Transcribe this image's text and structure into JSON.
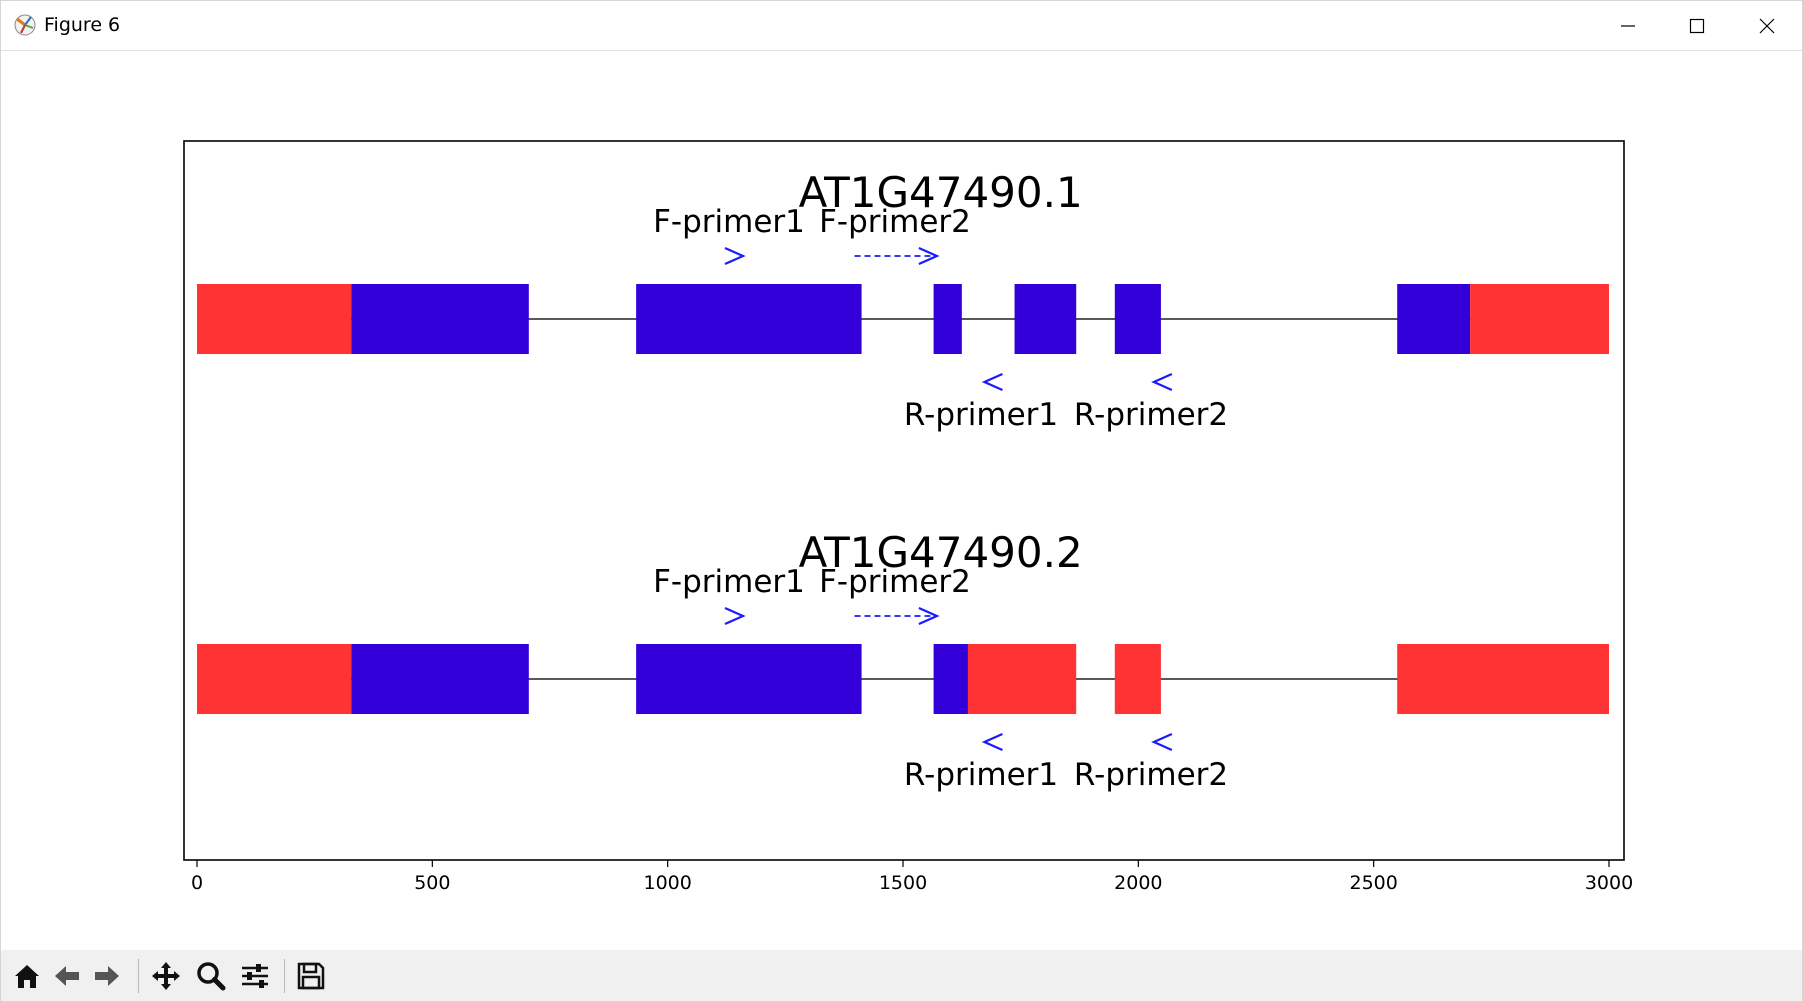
{
  "window": {
    "title": "Figure 6"
  },
  "toolbar": {
    "tools": [
      {
        "name": "home-icon"
      },
      {
        "name": "back-arrow-icon"
      },
      {
        "name": "forward-arrow-icon"
      },
      {
        "name": "pan-icon"
      },
      {
        "name": "zoom-icon"
      },
      {
        "name": "configure-subplots-icon"
      },
      {
        "name": "save-icon"
      }
    ]
  },
  "colors": {
    "red": "#ff3333",
    "blue": "#3300d9",
    "arrow": "#1a1aff",
    "line": "#222222"
  },
  "chart_data": {
    "type": "gene-structure",
    "xlim": [
      0,
      3000
    ],
    "xticks": [
      0,
      500,
      1000,
      1500,
      2000,
      2500,
      3000
    ],
    "transcripts": [
      {
        "name": "AT1G47490.1",
        "span": [
          0,
          3000
        ],
        "segments": [
          {
            "start": 0,
            "end": 328,
            "color": "red"
          },
          {
            "start": 328,
            "end": 705,
            "color": "blue"
          },
          {
            "start": 933,
            "end": 1412,
            "color": "blue"
          },
          {
            "start": 1565,
            "end": 1625,
            "color": "blue"
          },
          {
            "start": 1737,
            "end": 1868,
            "color": "blue"
          },
          {
            "start": 1950,
            "end": 2048,
            "color": "blue"
          },
          {
            "start": 2550,
            "end": 2705,
            "color": "blue"
          },
          {
            "start": 2705,
            "end": 3000,
            "color": "red"
          }
        ],
        "forward_primers": [
          {
            "label": "F-primer1",
            "start": 1125,
            "end": 1160,
            "marker": ">"
          },
          {
            "label": "F-primer2",
            "start": 1397,
            "end": 1572,
            "marker": "----->"
          }
        ],
        "reverse_primers": [
          {
            "label": "R-primer1",
            "start": 1673,
            "end": 1710,
            "marker": "<"
          },
          {
            "label": "R-primer2",
            "start": 2033,
            "end": 2070,
            "marker": "<"
          }
        ]
      },
      {
        "name": "AT1G47490.2",
        "span": [
          0,
          3000
        ],
        "segments": [
          {
            "start": 0,
            "end": 328,
            "color": "red"
          },
          {
            "start": 328,
            "end": 705,
            "color": "blue"
          },
          {
            "start": 933,
            "end": 1412,
            "color": "blue"
          },
          {
            "start": 1565,
            "end": 1638,
            "color": "blue"
          },
          {
            "start": 1638,
            "end": 1868,
            "color": "red"
          },
          {
            "start": 1950,
            "end": 2048,
            "color": "red"
          },
          {
            "start": 2550,
            "end": 3000,
            "color": "red"
          }
        ],
        "forward_primers": [
          {
            "label": "F-primer1",
            "start": 1125,
            "end": 1160,
            "marker": ">"
          },
          {
            "label": "F-primer2",
            "start": 1397,
            "end": 1572,
            "marker": "----->"
          }
        ],
        "reverse_primers": [
          {
            "label": "R-primer1",
            "start": 1673,
            "end": 1710,
            "marker": "<"
          },
          {
            "label": "R-primer2",
            "start": 2033,
            "end": 2070,
            "marker": "<"
          }
        ]
      }
    ]
  }
}
